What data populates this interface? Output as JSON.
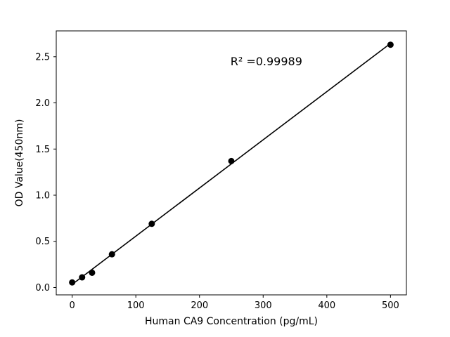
{
  "chart_data": {
    "type": "scatter",
    "x": [
      0,
      15.6,
      31.25,
      62.5,
      125,
      250,
      500
    ],
    "y": [
      0.055,
      0.11,
      0.16,
      0.36,
      0.69,
      1.37,
      2.63
    ],
    "title": "",
    "xlabel": "Human CA9 Concentration (pg/mL)",
    "ylabel": "OD Value(450nm)",
    "annotation": "R² =0.99989",
    "annotation_pos": {
      "fx": 0.6,
      "fy": 0.87
    },
    "xlim": [
      -25,
      525
    ],
    "ylim": [
      -0.08,
      2.78
    ],
    "xticks": [
      0,
      100,
      200,
      300,
      400,
      500
    ],
    "yticks": [
      0.0,
      0.5,
      1.0,
      1.5,
      2.0,
      2.5
    ],
    "line": "linear-fit",
    "marker_color": "#000000",
    "line_color": "#000000",
    "grid": false,
    "legend": "none"
  }
}
